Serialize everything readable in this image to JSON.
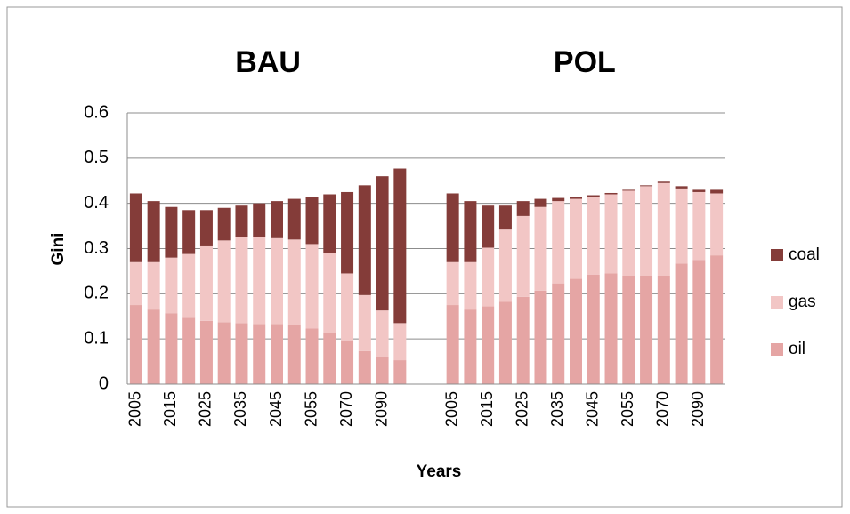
{
  "chart_data": {
    "type": "stacked-bar",
    "y_label": "Gini",
    "x_label": "Years",
    "categories": [
      "2005",
      null,
      "2015",
      null,
      "2025",
      null,
      "2035",
      null,
      "2045",
      null,
      "2055",
      null,
      "2070",
      null,
      "2090",
      null
    ],
    "ylim": [
      0,
      0.6
    ],
    "yticks": [
      0,
      0.1,
      0.2,
      0.3,
      0.4,
      0.5,
      0.6
    ],
    "grid": true,
    "panels": [
      {
        "title": "BAU",
        "series": [
          {
            "name": "oil",
            "color": "#e5a5a4",
            "values": [
              0.175,
              0.165,
              0.157,
              0.147,
              0.14,
              0.137,
              0.135,
              0.133,
              0.133,
              0.13,
              0.123,
              0.113,
              0.097,
              0.073,
              0.06,
              0.053
            ]
          },
          {
            "name": "gas",
            "color": "#f2c6c5",
            "values": [
              0.095,
              0.105,
              0.123,
              0.141,
              0.165,
              0.181,
              0.19,
              0.192,
              0.19,
              0.19,
              0.187,
              0.177,
              0.148,
              0.124,
              0.103,
              0.082
            ]
          },
          {
            "name": "coal",
            "color": "#843c39",
            "values": [
              0.152,
              0.135,
              0.112,
              0.097,
              0.08,
              0.072,
              0.07,
              0.075,
              0.082,
              0.09,
              0.105,
              0.13,
              0.18,
              0.243,
              0.297,
              0.342
            ]
          }
        ]
      },
      {
        "title": "POL",
        "series": [
          {
            "name": "oil",
            "color": "#e5a5a4",
            "values": [
              0.175,
              0.165,
              0.172,
              0.182,
              0.193,
              0.207,
              0.223,
              0.233,
              0.242,
              0.245,
              0.24,
              0.24,
              0.24,
              0.267,
              0.275,
              0.285
            ]
          },
          {
            "name": "gas",
            "color": "#f2c6c5",
            "values": [
              0.095,
              0.105,
              0.13,
              0.16,
              0.179,
              0.185,
              0.182,
              0.177,
              0.173,
              0.175,
              0.188,
              0.198,
              0.205,
              0.166,
              0.15,
              0.137
            ]
          },
          {
            "name": "coal",
            "color": "#843c39",
            "values": [
              0.152,
              0.135,
              0.093,
              0.053,
              0.033,
              0.018,
              0.007,
              0.005,
              0.003,
              0.003,
              0.002,
              0.002,
              0.003,
              0.005,
              0.005,
              0.008
            ]
          }
        ]
      }
    ]
  }
}
